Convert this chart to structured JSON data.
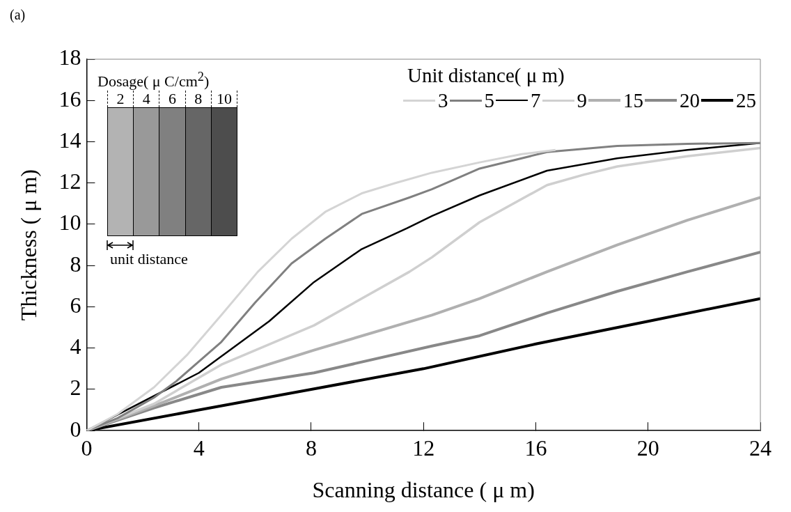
{
  "chart_data": {
    "type": "line",
    "xlabel": "Scanning distance ( μ m)",
    "ylabel": "Thickness ( μ m)",
    "legend_title": "Unit distance( μ m)",
    "legend": "top right",
    "grid": false,
    "marker": "none",
    "line_style": "solid",
    "xlim": [
      0,
      24
    ],
    "ylim": [
      0,
      18
    ],
    "xticks": [
      0,
      4,
      8,
      12,
      16,
      20,
      24
    ],
    "yticks": [
      0,
      2,
      4,
      6,
      8,
      10,
      12,
      14,
      16,
      18
    ],
    "annotations": [
      "(a)",
      "Dosage( μ C/cm$^{2}$)",
      "2",
      "4",
      "6",
      "8",
      "10",
      "unit distance"
    ],
    "series": [
      {
        "name": "3",
        "color": "#d4d4d4",
        "x": [
          0,
          1.1,
          2.4,
          3.6,
          4.8,
          6.1,
          7.3,
          8.5,
          9.8,
          11,
          12.3,
          14,
          15.5,
          16.7
        ],
        "values": [
          0,
          0.8,
          2.1,
          3.7,
          5.6,
          7.7,
          9.3,
          10.6,
          11.5,
          12.0,
          12.5,
          13.0,
          13.4,
          13.6
        ]
      },
      {
        "name": "5",
        "color": "#808080",
        "x": [
          0,
          1.1,
          2.4,
          3.2,
          4.8,
          6,
          7.3,
          8.5,
          9.8,
          11.5,
          12.3,
          14,
          16.4,
          18.9,
          21.4,
          24
        ],
        "values": [
          0,
          0.6,
          1.6,
          2.4,
          4.3,
          6.2,
          8.1,
          9.3,
          10.5,
          11.3,
          11.7,
          12.7,
          13.5,
          13.8,
          13.9,
          13.94
        ]
      },
      {
        "name": "7",
        "color": "#000000",
        "x": [
          0,
          2,
          4,
          4.8,
          6.5,
          8.1,
          9.8,
          11.4,
          12.3,
          14,
          16.4,
          18.9,
          21.4,
          24
        ],
        "values": [
          0,
          1.4,
          2.8,
          3.6,
          5.3,
          7.2,
          8.8,
          9.8,
          10.4,
          11.4,
          12.6,
          13.2,
          13.6,
          13.94
        ]
      },
      {
        "name": "9",
        "color": "#cfcfcf",
        "x": [
          0,
          2.4,
          4.8,
          8.1,
          11.5,
          12.3,
          14,
          16.4,
          17.7,
          18.9,
          21.4,
          24
        ],
        "values": [
          0,
          1.3,
          3.2,
          5.1,
          7.7,
          8.4,
          10.1,
          11.9,
          12.4,
          12.8,
          13.3,
          13.7
        ]
      },
      {
        "name": "15",
        "color": "#b0b0b0",
        "x": [
          0,
          2.4,
          4.8,
          8.1,
          12.3,
          14,
          16.4,
          18.9,
          21.4,
          24
        ],
        "values": [
          0,
          1.2,
          2.5,
          3.9,
          5.6,
          6.4,
          7.7,
          9,
          10.2,
          11.3
        ]
      },
      {
        "name": "20",
        "color": "#888888",
        "x": [
          0,
          2.4,
          4.8,
          8.1,
          12.3,
          14,
          16.4,
          18.9,
          21.4,
          24
        ],
        "values": [
          0,
          1.1,
          2.1,
          2.8,
          4.1,
          4.6,
          5.7,
          6.75,
          7.7,
          8.65
        ]
      },
      {
        "name": "25",
        "color": "#000000",
        "x": [
          0,
          4,
          8,
          12,
          16,
          20,
          24
        ],
        "values": [
          0,
          1,
          2,
          3,
          4.2,
          5.3,
          6.4
        ]
      }
    ]
  }
}
